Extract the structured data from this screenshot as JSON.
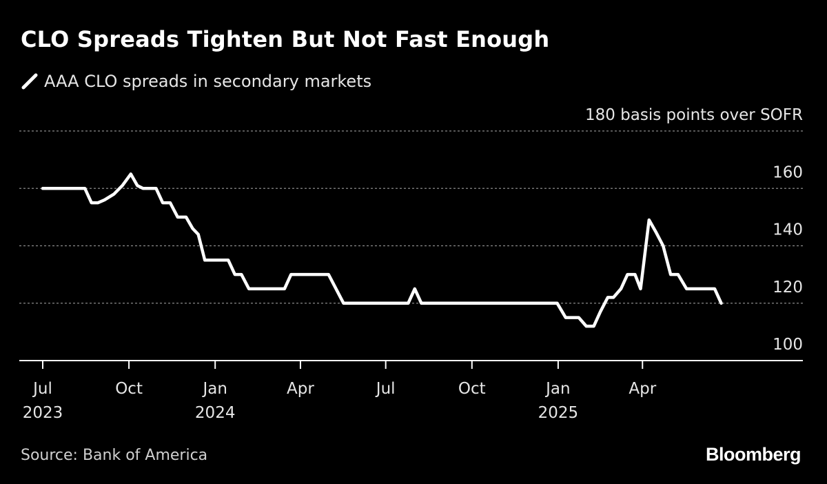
{
  "title": "CLO Spreads Tighten But Not Fast Enough",
  "legend": {
    "label": "AAA CLO spreads in secondary markets"
  },
  "source": "Source: Bank of America",
  "brand": "Bloomberg",
  "colors": {
    "background": "#000000",
    "line": "#ffffff",
    "grid": "#8c8c8c",
    "text": "#e6e6e6"
  },
  "chart_data": {
    "type": "line",
    "title": "CLO Spreads Tighten But Not Fast Enough",
    "ylabel": "basis points over SOFR",
    "ylim": [
      100,
      180
    ],
    "yticks": [
      {
        "value": 180,
        "label": "180 basis points over SOFR"
      },
      {
        "value": 160,
        "label": "160"
      },
      {
        "value": 140,
        "label": "140"
      },
      {
        "value": 120,
        "label": "120"
      },
      {
        "value": 100,
        "label": "100"
      }
    ],
    "grid": true,
    "legend_position": "top-left",
    "xlim": [
      "2023-07-01",
      "2025-07-01"
    ],
    "xticks": [
      {
        "date": "2023-07-01",
        "label": "Jul",
        "year": "2023"
      },
      {
        "date": "2023-10-01",
        "label": "Oct",
        "year": ""
      },
      {
        "date": "2024-01-01",
        "label": "Jan",
        "year": "2024"
      },
      {
        "date": "2024-04-01",
        "label": "Apr",
        "year": ""
      },
      {
        "date": "2024-07-01",
        "label": "Jul",
        "year": ""
      },
      {
        "date": "2024-10-01",
        "label": "Oct",
        "year": ""
      },
      {
        "date": "2025-01-01",
        "label": "Jan",
        "year": "2025"
      },
      {
        "date": "2025-04-01",
        "label": "Apr",
        "year": ""
      }
    ],
    "series": [
      {
        "name": "AAA CLO spreads in secondary markets",
        "points": [
          [
            "2023-07-01",
            160
          ],
          [
            "2023-07-24",
            160
          ],
          [
            "2023-08-01",
            160
          ],
          [
            "2023-08-15",
            160
          ],
          [
            "2023-08-22",
            155
          ],
          [
            "2023-08-29",
            155
          ],
          [
            "2023-09-05",
            156
          ],
          [
            "2023-09-15",
            158
          ],
          [
            "2023-09-24",
            161
          ],
          [
            "2023-10-03",
            165
          ],
          [
            "2023-10-10",
            161
          ],
          [
            "2023-10-16",
            160
          ],
          [
            "2023-10-30",
            160
          ],
          [
            "2023-11-06",
            155
          ],
          [
            "2023-11-14",
            155
          ],
          [
            "2023-11-22",
            150
          ],
          [
            "2023-12-01",
            150
          ],
          [
            "2023-12-08",
            146
          ],
          [
            "2023-12-14",
            144
          ],
          [
            "2023-12-21",
            135
          ],
          [
            "2024-01-01",
            135
          ],
          [
            "2024-01-15",
            135
          ],
          [
            "2024-01-22",
            130
          ],
          [
            "2024-01-29",
            130
          ],
          [
            "2024-02-06",
            125
          ],
          [
            "2024-02-20",
            125
          ],
          [
            "2024-03-10",
            125
          ],
          [
            "2024-03-15",
            125
          ],
          [
            "2024-03-22",
            130
          ],
          [
            "2024-04-01",
            130
          ],
          [
            "2024-04-20",
            130
          ],
          [
            "2024-05-01",
            130
          ],
          [
            "2024-05-09",
            125
          ],
          [
            "2024-05-17",
            120
          ],
          [
            "2024-06-01",
            120
          ],
          [
            "2024-06-30",
            120
          ],
          [
            "2024-07-15",
            120
          ],
          [
            "2024-07-25",
            120
          ],
          [
            "2024-08-01",
            125
          ],
          [
            "2024-08-08",
            120
          ],
          [
            "2024-09-01",
            120
          ],
          [
            "2024-10-01",
            120
          ],
          [
            "2024-11-01",
            120
          ],
          [
            "2024-12-01",
            120
          ],
          [
            "2024-12-31",
            120
          ],
          [
            "2025-01-09",
            115
          ],
          [
            "2025-01-23",
            115
          ],
          [
            "2025-01-31",
            112
          ],
          [
            "2025-02-08",
            112
          ],
          [
            "2025-02-15",
            117
          ],
          [
            "2025-02-23",
            122
          ],
          [
            "2025-03-01",
            122
          ],
          [
            "2025-03-09",
            125
          ],
          [
            "2025-03-16",
            130
          ],
          [
            "2025-03-24",
            130
          ],
          [
            "2025-03-30",
            125
          ],
          [
            "2025-04-08",
            149
          ],
          [
            "2025-04-15",
            145
          ],
          [
            "2025-04-23",
            140
          ],
          [
            "2025-05-01",
            130
          ],
          [
            "2025-05-09",
            130
          ],
          [
            "2025-05-18",
            125
          ],
          [
            "2025-05-25",
            125
          ],
          [
            "2025-06-10",
            125
          ],
          [
            "2025-06-17",
            125
          ],
          [
            "2025-06-24",
            120
          ]
        ]
      }
    ]
  }
}
